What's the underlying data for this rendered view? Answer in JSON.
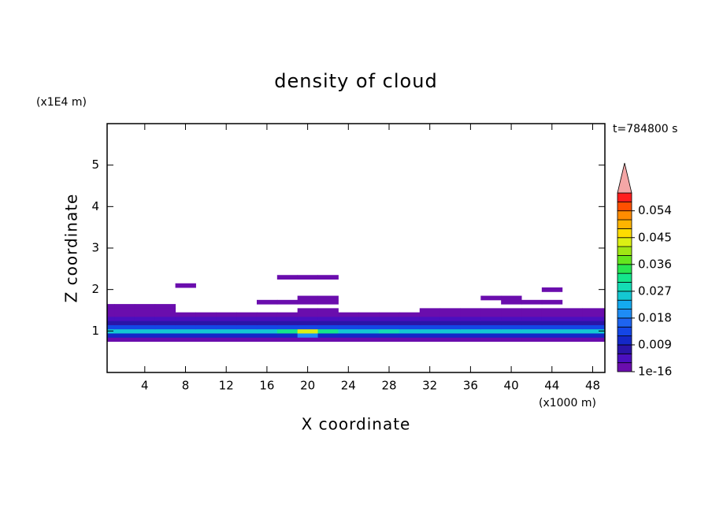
{
  "chart_data": {
    "type": "contour",
    "title": "density of cloud",
    "x_label": "X coordinate",
    "y_label": "Z coordinate",
    "x_unit": "(x1000 m)",
    "y_unit": "(x1E4 m)",
    "time_label": "t=784800 s",
    "xlim": [
      0.3,
      49.2
    ],
    "ylim": [
      0,
      6
    ],
    "xticks": [
      4,
      8,
      12,
      16,
      20,
      24,
      28,
      32,
      36,
      40,
      44,
      48
    ],
    "yticks": [
      1,
      2,
      3,
      4,
      5
    ],
    "grid": false,
    "x": [
      0,
      2,
      4,
      6,
      8,
      10,
      12,
      14,
      16,
      18,
      20,
      22,
      24,
      26,
      28,
      30,
      32,
      34,
      36,
      38,
      40,
      42,
      44,
      46,
      48,
      50
    ],
    "y": [
      0.8,
      0.9,
      1.0,
      1.1,
      1.2,
      1.3,
      1.4,
      1.5,
      1.6,
      1.7,
      1.8,
      1.9,
      2.0,
      2.1,
      2.2,
      2.3
    ],
    "field": [
      [
        0.002,
        0.002,
        0.002,
        0.002,
        0.002,
        0.002,
        0.002,
        0.002,
        0.002,
        0.002,
        0.002,
        0.002,
        0.002,
        0.002,
        0.002,
        0.002,
        0.002,
        0.002,
        0.002,
        0.002,
        0.002,
        0.002,
        0.002,
        0.002,
        0.002,
        0.002
      ],
      [
        0.01,
        0.01,
        0.01,
        0.01,
        0.01,
        0.01,
        0.01,
        0.01,
        0.01,
        0.01,
        0.02,
        0.01,
        0.01,
        0.01,
        0.01,
        0.01,
        0.01,
        0.01,
        0.01,
        0.01,
        0.01,
        0.01,
        0.01,
        0.01,
        0.01,
        0.01
      ],
      [
        0.025,
        0.025,
        0.025,
        0.025,
        0.025,
        0.025,
        0.025,
        0.025,
        0.025,
        0.03,
        0.042,
        0.03,
        0.025,
        0.025,
        0.028,
        0.025,
        0.025,
        0.025,
        0.025,
        0.025,
        0.025,
        0.025,
        0.025,
        0.025,
        0.025,
        0.025
      ],
      [
        0.013,
        0.013,
        0.013,
        0.013,
        0.013,
        0.013,
        0.013,
        0.013,
        0.013,
        0.013,
        0.013,
        0.013,
        0.013,
        0.013,
        0.013,
        0.013,
        0.013,
        0.013,
        0.013,
        0.013,
        0.013,
        0.013,
        0.013,
        0.013,
        0.013,
        0.013
      ],
      [
        0.007,
        0.007,
        0.007,
        0.007,
        0.007,
        0.007,
        0.007,
        0.007,
        0.007,
        0.007,
        0.007,
        0.007,
        0.007,
        0.007,
        0.007,
        0.007,
        0.007,
        0.007,
        0.007,
        0.007,
        0.007,
        0.007,
        0.007,
        0.007,
        0.007,
        0.007
      ],
      [
        0.003,
        0.003,
        0.003,
        0.003,
        0.003,
        0.003,
        0.003,
        0.003,
        0.003,
        0.003,
        0.003,
        0.003,
        0.003,
        0.003,
        0.003,
        0.003,
        0.003,
        0.003,
        0.003,
        0.003,
        0.003,
        0.003,
        0.003,
        0.003,
        0.003,
        0.003
      ],
      [
        0.001,
        0.001,
        0.001,
        0.001,
        0.001,
        0.001,
        0.001,
        0.001,
        0.001,
        0.001,
        0.001,
        0.001,
        0.001,
        0.001,
        0.001,
        0.001,
        0.001,
        0.001,
        0.001,
        0.001,
        0.001,
        0.001,
        0.001,
        0.001,
        0.001,
        0.001
      ],
      [
        0.001,
        0.001,
        0.001,
        0.001,
        0,
        0,
        0,
        0,
        0,
        0,
        0.001,
        0.001,
        0,
        0,
        0,
        0,
        0.001,
        0.001,
        0.001,
        0.001,
        0.001,
        0.001,
        0.001,
        0.001,
        0.001,
        0.001
      ],
      [
        0.001,
        0.001,
        0.001,
        0.001,
        0,
        0,
        0,
        0,
        0,
        0,
        0,
        0,
        0,
        0,
        0,
        0,
        0,
        0,
        0,
        0,
        0,
        0,
        0,
        0,
        0,
        0
      ],
      [
        0,
        0,
        0,
        0,
        0,
        0,
        0,
        0,
        0.001,
        0.001,
        0.001,
        0.001,
        0,
        0,
        0,
        0,
        0,
        0,
        0,
        0,
        0.001,
        0.001,
        0.001,
        0,
        0,
        0
      ],
      [
        0,
        0,
        0,
        0,
        0,
        0,
        0,
        0,
        0,
        0,
        0.001,
        0.001,
        0,
        0,
        0,
        0,
        0,
        0,
        0,
        0.001,
        0.001,
        0,
        0,
        0,
        0,
        0
      ],
      [
        0,
        0,
        0,
        0,
        0,
        0,
        0,
        0,
        0,
        0,
        0,
        0,
        0,
        0,
        0,
        0,
        0,
        0,
        0,
        0,
        0,
        0,
        0,
        0,
        0,
        0
      ],
      [
        0,
        0,
        0,
        0,
        0,
        0,
        0,
        0,
        0,
        0,
        0,
        0,
        0,
        0,
        0,
        0,
        0,
        0,
        0,
        0,
        0,
        0,
        0.001,
        0,
        0,
        0
      ],
      [
        0,
        0,
        0,
        0,
        0.001,
        0,
        0,
        0,
        0,
        0,
        0,
        0,
        0,
        0,
        0,
        0,
        0,
        0,
        0,
        0,
        0,
        0,
        0,
        0,
        0,
        0
      ],
      [
        0,
        0,
        0,
        0,
        0,
        0,
        0,
        0,
        0,
        0,
        0,
        0,
        0,
        0,
        0,
        0,
        0,
        0,
        0,
        0,
        0,
        0,
        0,
        0,
        0,
        0
      ],
      [
        0,
        0,
        0,
        0,
        0,
        0,
        0,
        0,
        0,
        0.001,
        0.001,
        0.001,
        0,
        0,
        0,
        0,
        0,
        0,
        0,
        0,
        0,
        0,
        0,
        0,
        0,
        0
      ]
    ],
    "levels": [
      1e-16,
      0.003,
      0.006,
      0.009,
      0.012,
      0.015,
      0.018,
      0.021,
      0.024,
      0.027,
      0.03,
      0.033,
      0.036,
      0.039,
      0.042,
      0.045,
      0.048,
      0.051,
      0.054,
      0.057,
      0.06
    ],
    "colors": [
      "#6a0dad",
      "#4b0fbf",
      "#2a14a8",
      "#1428c8",
      "#1446e6",
      "#1e64f0",
      "#1e8cf5",
      "#14aaf0",
      "#14c8d2",
      "#14dcb4",
      "#14e68c",
      "#28e650",
      "#64e61e",
      "#a0e614",
      "#dcf014",
      "#ffdc00",
      "#ffb400",
      "#ff8c00",
      "#ff5000",
      "#ff1e1e"
    ],
    "extend_color": "#f4a6a6",
    "colorbar_ticks": [
      1e-16,
      0.009,
      0.018,
      0.027,
      0.036,
      0.045,
      0.054
    ]
  }
}
